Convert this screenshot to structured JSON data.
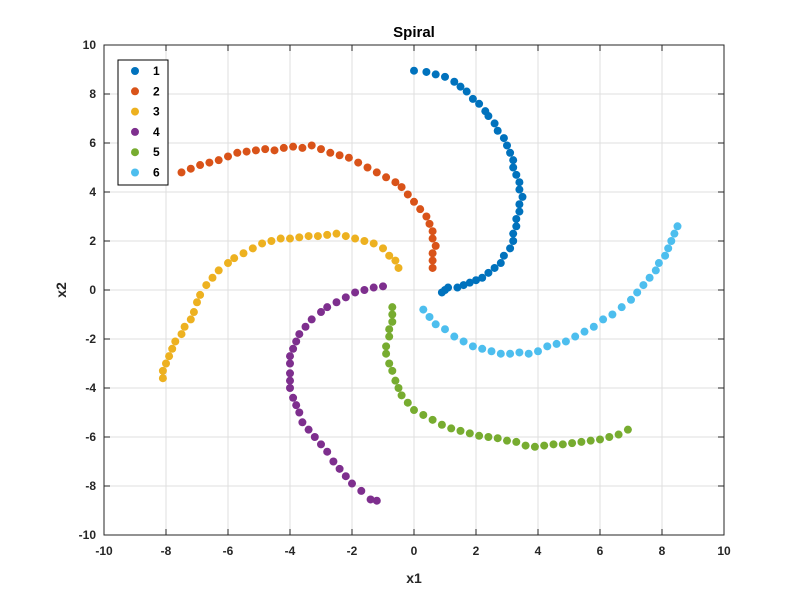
{
  "chart_data": {
    "type": "scatter",
    "title": "Spiral",
    "xlabel": "x1",
    "ylabel": "x2",
    "xlim": [
      -10,
      10
    ],
    "ylim": [
      -10,
      10
    ],
    "xticks": [
      "-10",
      "-8",
      "-6",
      "-4",
      "-2",
      "0",
      "2",
      "4",
      "6",
      "8",
      "10"
    ],
    "yticks": [
      "-10",
      "-8",
      "-6",
      "-4",
      "-2",
      "0",
      "2",
      "4",
      "6",
      "8",
      "10"
    ],
    "grid": true,
    "legend_position": "top-left",
    "series": [
      {
        "name": "1",
        "color": "#0072BD",
        "points": [
          [
            0.0,
            8.95
          ],
          [
            0.4,
            8.9
          ],
          [
            0.7,
            8.8
          ],
          [
            1.0,
            8.7
          ],
          [
            1.3,
            8.5
          ],
          [
            1.5,
            8.3
          ],
          [
            1.7,
            8.1
          ],
          [
            1.9,
            7.8
          ],
          [
            2.1,
            7.6
          ],
          [
            2.3,
            7.3
          ],
          [
            2.4,
            7.1
          ],
          [
            2.6,
            6.8
          ],
          [
            2.7,
            6.5
          ],
          [
            2.9,
            6.2
          ],
          [
            3.0,
            5.9
          ],
          [
            3.1,
            5.6
          ],
          [
            3.2,
            5.3
          ],
          [
            3.2,
            5.0
          ],
          [
            3.3,
            4.7
          ],
          [
            3.4,
            4.4
          ],
          [
            3.4,
            4.1
          ],
          [
            3.5,
            3.8
          ],
          [
            3.4,
            3.5
          ],
          [
            3.4,
            3.2
          ],
          [
            3.3,
            2.9
          ],
          [
            3.3,
            2.6
          ],
          [
            3.2,
            2.3
          ],
          [
            3.2,
            2.0
          ],
          [
            3.1,
            1.7
          ],
          [
            2.9,
            1.4
          ],
          [
            2.8,
            1.1
          ],
          [
            2.6,
            0.9
          ],
          [
            2.4,
            0.7
          ],
          [
            2.2,
            0.5
          ],
          [
            2.0,
            0.4
          ],
          [
            1.8,
            0.3
          ],
          [
            1.6,
            0.2
          ],
          [
            1.4,
            0.1
          ],
          [
            1.1,
            0.1
          ],
          [
            1.0,
            0.0
          ],
          [
            0.9,
            -0.1
          ]
        ]
      },
      {
        "name": "2",
        "color": "#D95319",
        "points": [
          [
            -7.5,
            4.8
          ],
          [
            -7.2,
            4.95
          ],
          [
            -6.9,
            5.1
          ],
          [
            -6.6,
            5.2
          ],
          [
            -6.3,
            5.3
          ],
          [
            -6.0,
            5.45
          ],
          [
            -5.7,
            5.6
          ],
          [
            -5.4,
            5.65
          ],
          [
            -5.1,
            5.7
          ],
          [
            -4.8,
            5.75
          ],
          [
            -4.5,
            5.7
          ],
          [
            -4.2,
            5.8
          ],
          [
            -3.9,
            5.85
          ],
          [
            -3.6,
            5.8
          ],
          [
            -3.3,
            5.9
          ],
          [
            -3.0,
            5.75
          ],
          [
            -2.7,
            5.6
          ],
          [
            -2.4,
            5.5
          ],
          [
            -2.1,
            5.4
          ],
          [
            -1.8,
            5.2
          ],
          [
            -1.5,
            5.0
          ],
          [
            -1.2,
            4.8
          ],
          [
            -0.9,
            4.6
          ],
          [
            -0.6,
            4.4
          ],
          [
            -0.4,
            4.2
          ],
          [
            -0.2,
            3.9
          ],
          [
            0.0,
            3.6
          ],
          [
            0.2,
            3.3
          ],
          [
            0.4,
            3.0
          ],
          [
            0.5,
            2.7
          ],
          [
            0.6,
            2.4
          ],
          [
            0.6,
            2.1
          ],
          [
            0.7,
            1.8
          ],
          [
            0.6,
            1.5
          ],
          [
            0.6,
            1.2
          ],
          [
            0.6,
            0.9
          ]
        ]
      },
      {
        "name": "3",
        "color": "#EDB120",
        "points": [
          [
            -8.1,
            -3.6
          ],
          [
            -8.1,
            -3.3
          ],
          [
            -8.0,
            -3.0
          ],
          [
            -7.9,
            -2.7
          ],
          [
            -7.8,
            -2.4
          ],
          [
            -7.7,
            -2.1
          ],
          [
            -7.5,
            -1.8
          ],
          [
            -7.4,
            -1.5
          ],
          [
            -7.2,
            -1.2
          ],
          [
            -7.1,
            -0.9
          ],
          [
            -7.0,
            -0.5
          ],
          [
            -6.9,
            -0.2
          ],
          [
            -6.7,
            0.2
          ],
          [
            -6.5,
            0.5
          ],
          [
            -6.3,
            0.8
          ],
          [
            -6.0,
            1.1
          ],
          [
            -5.8,
            1.3
          ],
          [
            -5.5,
            1.5
          ],
          [
            -5.2,
            1.7
          ],
          [
            -4.9,
            1.9
          ],
          [
            -4.6,
            2.0
          ],
          [
            -4.3,
            2.1
          ],
          [
            -4.0,
            2.1
          ],
          [
            -3.7,
            2.15
          ],
          [
            -3.4,
            2.2
          ],
          [
            -3.1,
            2.2
          ],
          [
            -2.8,
            2.25
          ],
          [
            -2.5,
            2.3
          ],
          [
            -2.2,
            2.2
          ],
          [
            -1.9,
            2.1
          ],
          [
            -1.6,
            2.0
          ],
          [
            -1.3,
            1.9
          ],
          [
            -1.0,
            1.7
          ],
          [
            -0.8,
            1.4
          ],
          [
            -0.6,
            1.2
          ],
          [
            -0.5,
            0.9
          ]
        ]
      },
      {
        "name": "4",
        "color": "#7E2F8E",
        "points": [
          [
            -1.2,
            -8.6
          ],
          [
            -1.4,
            -8.55
          ],
          [
            -1.7,
            -8.2
          ],
          [
            -2.0,
            -7.9
          ],
          [
            -2.2,
            -7.6
          ],
          [
            -2.4,
            -7.3
          ],
          [
            -2.6,
            -7.0
          ],
          [
            -2.8,
            -6.6
          ],
          [
            -3.0,
            -6.3
          ],
          [
            -3.2,
            -6.0
          ],
          [
            -3.4,
            -5.7
          ],
          [
            -3.6,
            -5.4
          ],
          [
            -3.7,
            -5.0
          ],
          [
            -3.8,
            -4.7
          ],
          [
            -3.9,
            -4.4
          ],
          [
            -4.0,
            -4.0
          ],
          [
            -4.0,
            -3.7
          ],
          [
            -4.0,
            -3.4
          ],
          [
            -4.0,
            -3.0
          ],
          [
            -4.0,
            -2.7
          ],
          [
            -3.9,
            -2.4
          ],
          [
            -3.8,
            -2.1
          ],
          [
            -3.7,
            -1.8
          ],
          [
            -3.5,
            -1.5
          ],
          [
            -3.3,
            -1.2
          ],
          [
            -3.0,
            -0.9
          ],
          [
            -2.8,
            -0.7
          ],
          [
            -2.5,
            -0.5
          ],
          [
            -2.2,
            -0.3
          ],
          [
            -1.9,
            -0.1
          ],
          [
            -1.6,
            0.0
          ],
          [
            -1.3,
            0.1
          ],
          [
            -1.0,
            0.15
          ]
        ]
      },
      {
        "name": "5",
        "color": "#77AC30",
        "points": [
          [
            6.9,
            -5.7
          ],
          [
            6.6,
            -5.9
          ],
          [
            6.3,
            -6.0
          ],
          [
            6.0,
            -6.1
          ],
          [
            5.7,
            -6.15
          ],
          [
            5.4,
            -6.2
          ],
          [
            5.1,
            -6.25
          ],
          [
            4.8,
            -6.3
          ],
          [
            4.5,
            -6.3
          ],
          [
            4.2,
            -6.35
          ],
          [
            3.9,
            -6.4
          ],
          [
            3.6,
            -6.35
          ],
          [
            3.3,
            -6.2
          ],
          [
            3.0,
            -6.15
          ],
          [
            2.7,
            -6.05
          ],
          [
            2.4,
            -6.0
          ],
          [
            2.1,
            -5.95
          ],
          [
            1.8,
            -5.85
          ],
          [
            1.5,
            -5.75
          ],
          [
            1.2,
            -5.65
          ],
          [
            0.9,
            -5.5
          ],
          [
            0.6,
            -5.3
          ],
          [
            0.3,
            -5.1
          ],
          [
            0.0,
            -4.9
          ],
          [
            -0.2,
            -4.6
          ],
          [
            -0.4,
            -4.3
          ],
          [
            -0.5,
            -4.0
          ],
          [
            -0.6,
            -3.7
          ],
          [
            -0.7,
            -3.3
          ],
          [
            -0.8,
            -3.0
          ],
          [
            -0.9,
            -2.6
          ],
          [
            -0.9,
            -2.3
          ],
          [
            -0.8,
            -1.9
          ],
          [
            -0.8,
            -1.6
          ],
          [
            -0.7,
            -1.3
          ],
          [
            -0.7,
            -1.0
          ],
          [
            -0.7,
            -0.7
          ]
        ]
      },
      {
        "name": "6",
        "color": "#4DBEEE",
        "points": [
          [
            0.3,
            -0.8
          ],
          [
            0.5,
            -1.1
          ],
          [
            0.7,
            -1.4
          ],
          [
            1.0,
            -1.6
          ],
          [
            1.3,
            -1.9
          ],
          [
            1.6,
            -2.1
          ],
          [
            1.9,
            -2.3
          ],
          [
            2.2,
            -2.4
          ],
          [
            2.5,
            -2.5
          ],
          [
            2.8,
            -2.6
          ],
          [
            3.1,
            -2.6
          ],
          [
            3.4,
            -2.55
          ],
          [
            3.7,
            -2.6
          ],
          [
            4.0,
            -2.5
          ],
          [
            4.3,
            -2.3
          ],
          [
            4.6,
            -2.2
          ],
          [
            4.9,
            -2.1
          ],
          [
            5.2,
            -1.9
          ],
          [
            5.5,
            -1.7
          ],
          [
            5.8,
            -1.5
          ],
          [
            6.1,
            -1.2
          ],
          [
            6.4,
            -1.0
          ],
          [
            6.7,
            -0.7
          ],
          [
            7.0,
            -0.4
          ],
          [
            7.2,
            -0.1
          ],
          [
            7.4,
            0.2
          ],
          [
            7.6,
            0.5
          ],
          [
            7.8,
            0.8
          ],
          [
            7.9,
            1.1
          ],
          [
            8.1,
            1.4
          ],
          [
            8.2,
            1.7
          ],
          [
            8.3,
            2.0
          ],
          [
            8.4,
            2.3
          ],
          [
            8.5,
            2.6
          ]
        ]
      }
    ]
  }
}
